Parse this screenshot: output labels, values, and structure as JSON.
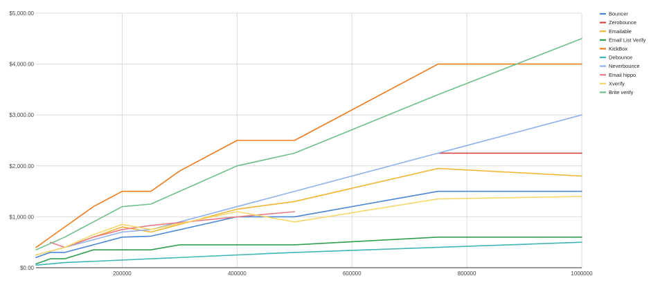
{
  "chart_data": {
    "type": "line",
    "title": "",
    "xlabel": "",
    "ylabel": "",
    "xlim": [
      50000,
      1000000
    ],
    "ylim": [
      0,
      5000
    ],
    "x_ticks": [
      200000,
      400000,
      600000,
      800000,
      1000000
    ],
    "x_tick_labels": [
      "200000",
      "400000",
      "600000",
      "800000",
      "1000000"
    ],
    "y_ticks": [
      0,
      1000,
      2000,
      3000,
      4000,
      5000
    ],
    "y_tick_labels": [
      "$0.00",
      "$1,000.00",
      "$2,000.00",
      "$3,000.00",
      "$4,000.00",
      "$5,000.00"
    ],
    "grid": "both",
    "legend_position": "right",
    "series": [
      {
        "name": "Bouncer",
        "color": "#4a86d8",
        "points": [
          [
            50000,
            200
          ],
          [
            75000,
            300
          ],
          [
            100000,
            300
          ],
          [
            150000,
            450
          ],
          [
            200000,
            600
          ],
          [
            250000,
            620
          ],
          [
            400000,
            1000
          ],
          [
            500000,
            1000
          ],
          [
            750000,
            1500
          ],
          [
            1000000,
            1500
          ]
        ]
      },
      {
        "name": "Zerobounce",
        "color": "#d9423a",
        "points": [
          [
            750000,
            2250
          ],
          [
            1000000,
            2250
          ]
        ]
      },
      {
        "name": "Emailable",
        "color": "#f2b531",
        "points": [
          [
            50000,
            250
          ],
          [
            100000,
            400
          ],
          [
            150000,
            600
          ],
          [
            200000,
            800
          ],
          [
            250000,
            700
          ],
          [
            400000,
            1150
          ],
          [
            500000,
            1300
          ],
          [
            750000,
            1950
          ],
          [
            1000000,
            1800
          ]
        ]
      },
      {
        "name": "Email List Verify",
        "color": "#2e9e4f",
        "points": [
          [
            50000,
            75
          ],
          [
            75000,
            175
          ],
          [
            100000,
            175
          ],
          [
            150000,
            350
          ],
          [
            250000,
            350
          ],
          [
            300000,
            450
          ],
          [
            500000,
            450
          ],
          [
            750000,
            600
          ],
          [
            1000000,
            600
          ]
        ]
      },
      {
        "name": "KickBox",
        "color": "#ef7a1a",
        "points": [
          [
            50000,
            400
          ],
          [
            100000,
            800
          ],
          [
            150000,
            1200
          ],
          [
            200000,
            1500
          ],
          [
            250000,
            1500
          ],
          [
            300000,
            1900
          ],
          [
            400000,
            2500
          ],
          [
            500000,
            2500
          ],
          [
            750000,
            4000
          ],
          [
            1000000,
            4000
          ]
        ]
      },
      {
        "name": "Debounce",
        "color": "#3fb7b5",
        "points": [
          [
            50000,
            50
          ],
          [
            100000,
            100
          ],
          [
            500000,
            300
          ],
          [
            1000000,
            500
          ]
        ]
      },
      {
        "name": "Neverbounce",
        "color": "#8fb0ee",
        "points": [
          [
            50000,
            250
          ],
          [
            100000,
            400
          ],
          [
            150000,
            550
          ],
          [
            200000,
            700
          ],
          [
            250000,
            750
          ],
          [
            400000,
            1200
          ],
          [
            750000,
            2250
          ],
          [
            1000000,
            3000
          ]
        ]
      },
      {
        "name": "Email hippo",
        "color": "#e87a85",
        "points": [
          [
            75000,
            500
          ],
          [
            100000,
            400
          ],
          [
            150000,
            600
          ],
          [
            200000,
            750
          ],
          [
            250000,
            830
          ],
          [
            400000,
            1000
          ],
          [
            500000,
            1100
          ]
        ]
      },
      {
        "name": "Xverify",
        "color": "#f7d66a",
        "points": [
          [
            50000,
            250
          ],
          [
            100000,
            400
          ],
          [
            150000,
            650
          ],
          [
            200000,
            850
          ],
          [
            250000,
            750
          ],
          [
            400000,
            1100
          ],
          [
            500000,
            900
          ],
          [
            750000,
            1350
          ],
          [
            1000000,
            1400
          ]
        ]
      },
      {
        "name": "Brite verify",
        "color": "#6cbf87",
        "points": [
          [
            50000,
            350
          ],
          [
            100000,
            600
          ],
          [
            150000,
            900
          ],
          [
            200000,
            1200
          ],
          [
            250000,
            1250
          ],
          [
            400000,
            2000
          ],
          [
            500000,
            2250
          ],
          [
            750000,
            3400
          ],
          [
            1000000,
            4500
          ]
        ]
      }
    ]
  }
}
